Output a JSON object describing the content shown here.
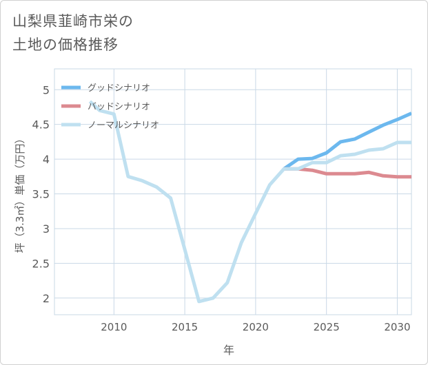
{
  "title": {
    "line1": "山梨県韮崎市栄の",
    "line2": "土地の価格推移"
  },
  "colors": {
    "good": "#6cb8ee",
    "bad": "#dc8a90",
    "normal": "#bfe0f0",
    "grid": "#c9d8e6",
    "axis": "#5a5a5a"
  },
  "chart_data": {
    "type": "line",
    "xlabel": "年",
    "ylabel": "坪（3.3㎡）単価（万円）",
    "xlim": [
      2005.8,
      2031
    ],
    "ylim": [
      1.76,
      5.3
    ],
    "xticks": [
      "2010",
      "2015",
      "2020",
      "2025",
      "2030"
    ],
    "yticks": [
      "2",
      "2.5",
      "3",
      "3.5",
      "4",
      "4.5",
      "5"
    ],
    "grid": true,
    "legend_position": "top-left",
    "series": [
      {
        "name": "グッドシナリオ",
        "color": "#6cb8ee",
        "x": [
          2022,
          2023,
          2024,
          2025,
          2026,
          2027,
          2028,
          2029,
          2030,
          2031
        ],
        "y": [
          3.86,
          4.0,
          4.01,
          4.09,
          4.25,
          4.29,
          4.39,
          4.49,
          4.57,
          4.66
        ]
      },
      {
        "name": "バッドシナリオ",
        "color": "#dc8a90",
        "x": [
          2022,
          2023,
          2024,
          2025,
          2026,
          2027,
          2028,
          2029,
          2030,
          2031
        ],
        "y": [
          3.86,
          3.86,
          3.84,
          3.79,
          3.79,
          3.79,
          3.81,
          3.76,
          3.745,
          3.745
        ]
      },
      {
        "name": "ノーマルシナリオ",
        "color": "#bfe0f0",
        "x": [
          2008.3,
          2009,
          2010,
          2011,
          2012,
          2013,
          2014,
          2015,
          2016,
          2017,
          2018,
          2019,
          2020,
          2021,
          2022,
          2023,
          2024,
          2025,
          2026,
          2027,
          2028,
          2029,
          2030,
          2031
        ],
        "y": [
          4.83,
          4.7,
          4.65,
          3.75,
          3.69,
          3.6,
          3.44,
          2.7,
          1.95,
          2.0,
          2.22,
          2.8,
          3.22,
          3.63,
          3.86,
          3.86,
          3.95,
          3.95,
          4.05,
          4.07,
          4.13,
          4.15,
          4.24,
          4.24
        ]
      }
    ]
  }
}
